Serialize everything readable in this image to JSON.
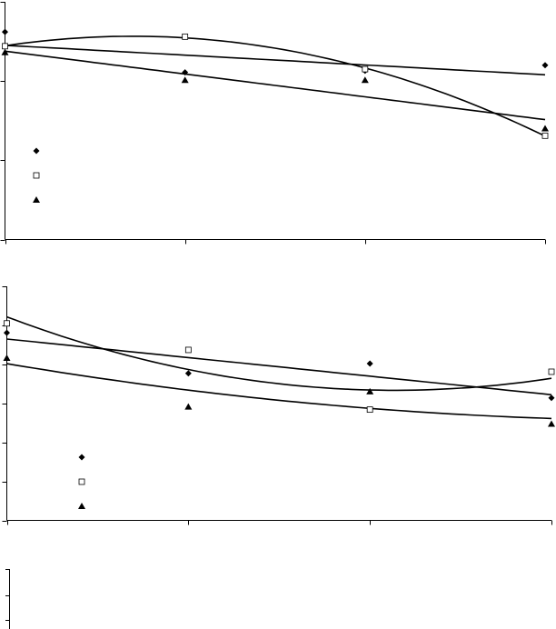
{
  "chart_data": [
    {
      "type": "scatter",
      "x": [
        0,
        1,
        2,
        3
      ],
      "xlim": [
        0,
        3
      ],
      "xticks": [
        0,
        1,
        2,
        3
      ],
      "ylim": [
        0,
        3
      ],
      "yticks": [
        0,
        1,
        2,
        3
      ],
      "series": [
        {
          "color": "#000000",
          "marker": "diamond",
          "trendline": "linear",
          "values": [
            2.62,
            2.11,
            2.13,
            2.2
          ]
        },
        {
          "color": "#000000",
          "marker": "square",
          "trendline": "poly2",
          "values": [
            2.44,
            2.56,
            2.15,
            1.31
          ]
        },
        {
          "color": "#000000",
          "marker": "triangle",
          "trendline": "linear",
          "values": [
            2.36,
            2.01,
            2.01,
            1.4
          ]
        }
      ]
    },
    {
      "type": "scatter",
      "x": [
        0,
        1,
        2,
        3
      ],
      "xlim": [
        0,
        3
      ],
      "xticks": [
        0,
        1,
        2,
        3
      ],
      "ylim": [
        0,
        6
      ],
      "yticks": [
        0,
        1,
        2,
        3,
        4,
        5,
        6
      ],
      "series": [
        {
          "color": "#000000",
          "marker": "diamond",
          "trendline": "linear",
          "values": [
            4.81,
            3.77,
            4.02,
            3.14
          ]
        },
        {
          "color": "#000000",
          "marker": "square",
          "trendline": "poly2",
          "values": [
            5.05,
            4.37,
            2.84,
            3.81
          ]
        },
        {
          "color": "#000000",
          "marker": "triangle",
          "trendline": "poly2",
          "values": [
            4.16,
            2.91,
            3.3,
            2.47
          ]
        }
      ]
    }
  ]
}
